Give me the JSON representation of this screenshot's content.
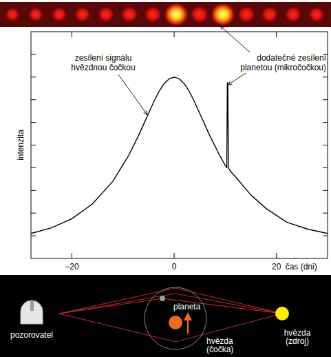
{
  "chart_data": {
    "type": "line",
    "x": [
      -28,
      -24,
      -20,
      -16,
      -12,
      -9,
      -8,
      -7,
      -6,
      -5,
      -4,
      -3,
      -2,
      -1,
      0,
      1,
      2,
      3,
      4,
      5,
      6,
      7,
      8,
      9,
      10,
      10.3,
      10.4,
      10.5,
      10.6,
      11,
      12,
      15,
      18,
      22,
      26,
      30
    ],
    "values": [
      1.1,
      1.35,
      1.75,
      2.4,
      3.4,
      4.5,
      4.95,
      5.4,
      5.9,
      6.4,
      6.9,
      7.35,
      7.7,
      7.92,
      8.0,
      7.92,
      7.7,
      7.35,
      6.9,
      6.4,
      5.9,
      5.4,
      4.95,
      4.5,
      4.1,
      4.0,
      7.75,
      7.7,
      4.0,
      3.85,
      3.6,
      2.8,
      2.2,
      1.6,
      1.3,
      1.1
    ],
    "color": "#000000",
    "xlim": [
      -28,
      30
    ],
    "xticks": [
      {
        "value": -20,
        "label": "−20"
      },
      0,
      20
    ],
    "ylim": [
      0,
      10
    ],
    "yticks": [
      1,
      2,
      3,
      4,
      5,
      6,
      7,
      8,
      9
    ],
    "tick_labels": "x",
    "xlabel": "čas (dni)",
    "ylabel": "intenzita",
    "annotations": [
      {
        "text": [
          "zesílení signálu",
          "hvězdnou čočkou"
        ]
      },
      {
        "text": [
          "dodatečné zesílení",
          "planetou (mikročočkou)"
        ]
      }
    ]
  },
  "diagram": {
    "observer": "pozorovatel",
    "planet": "planeta",
    "lens": [
      "hvězda",
      "(čočka)"
    ],
    "source": [
      "hvězda",
      "(zdroj)"
    ]
  }
}
